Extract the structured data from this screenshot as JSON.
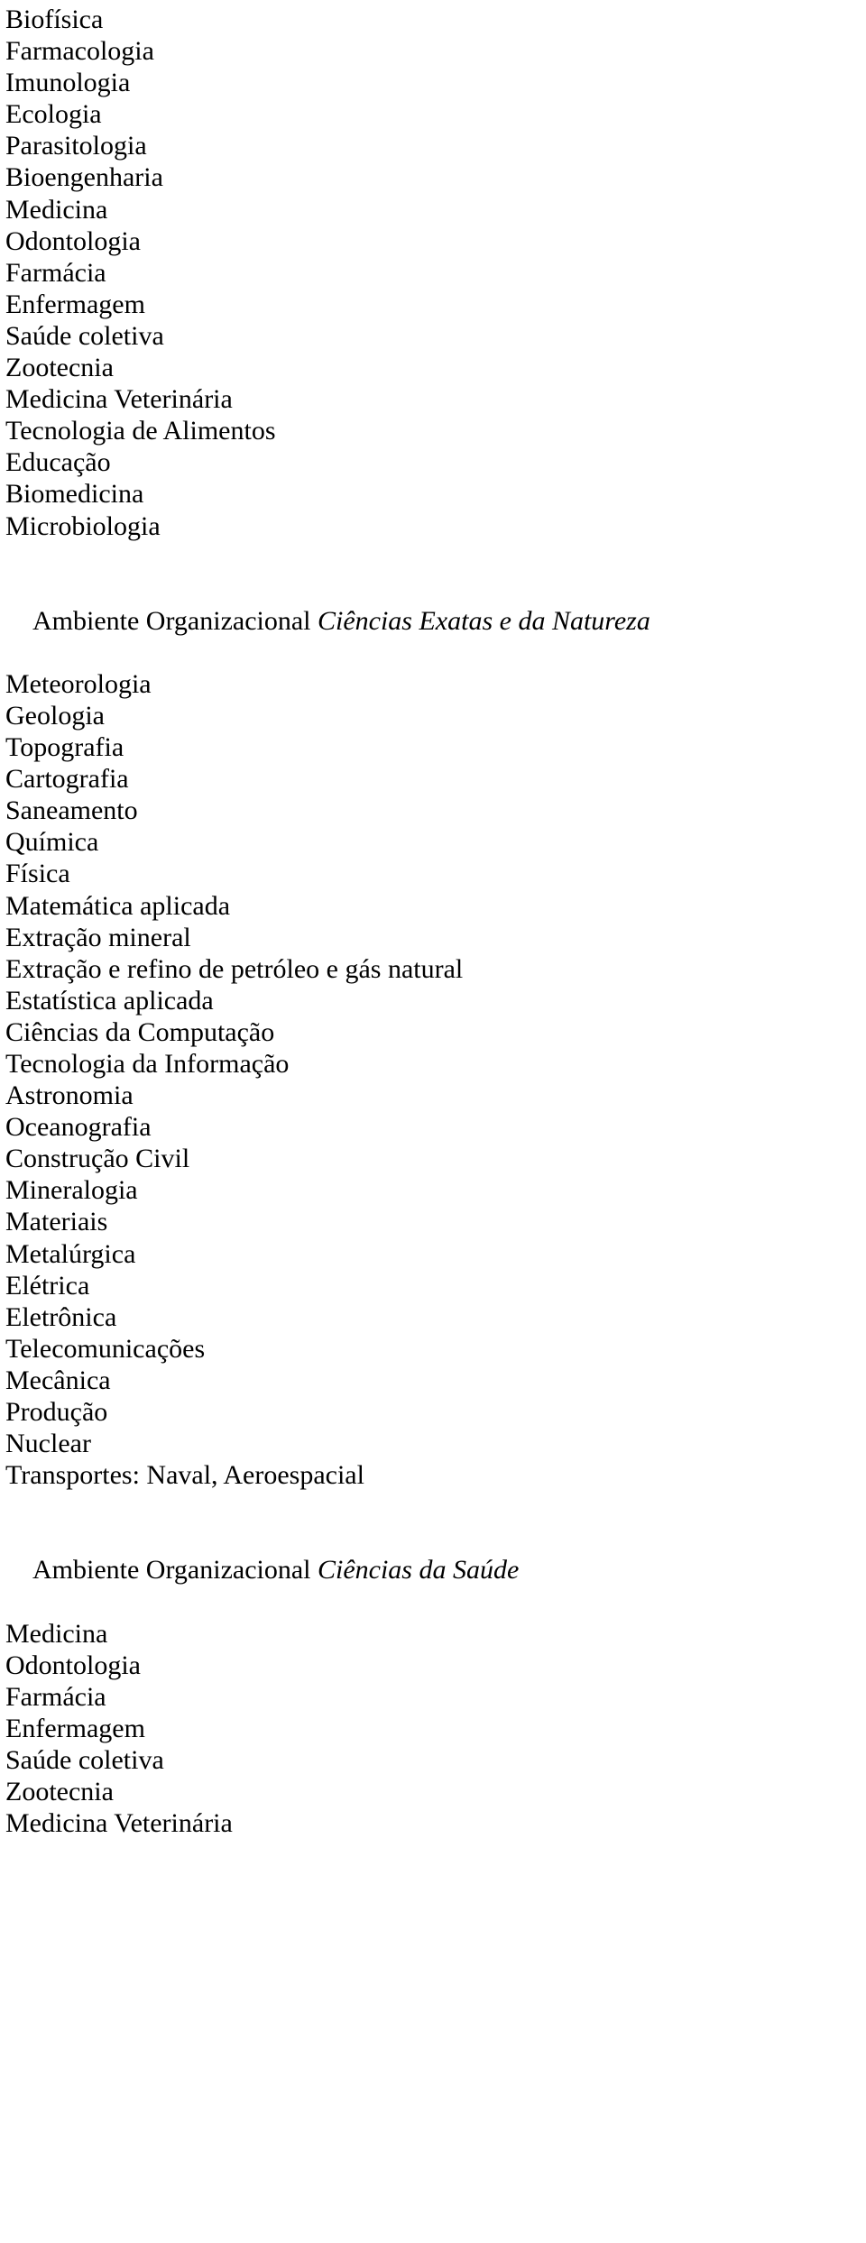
{
  "font": {
    "family": "Times New Roman",
    "size_pt": 22,
    "line_height": 1.17,
    "color": "#000000",
    "background": "#ffffff"
  },
  "sections": {
    "block1": [
      "Biofísica",
      "Farmacologia",
      "Imunologia",
      "Ecologia",
      "Parasitologia",
      "Bioengenharia",
      "Medicina",
      "Odontologia",
      "Farmácia",
      "Enfermagem",
      "Saúde coletiva",
      "Zootecnia",
      "Medicina Veterinária",
      "Tecnologia de Alimentos",
      "Educação",
      "Biomedicina",
      "Microbiologia"
    ],
    "heading2": {
      "prefix": "Ambiente Organizacional ",
      "italic": "Ciências Exatas e da Natureza"
    },
    "block2": [
      "Meteorologia",
      "Geologia",
      "Topografia",
      "Cartografia",
      "Saneamento",
      "Química",
      "Física",
      "Matemática aplicada",
      "Extração mineral",
      "Extração e refino de petróleo e gás natural",
      "Estatística aplicada",
      "Ciências da Computação",
      "Tecnologia da Informação",
      "Astronomia",
      "Oceanografia",
      "Construção Civil",
      "Mineralogia",
      "Materiais",
      "Metalúrgica",
      "Elétrica",
      "Eletrônica",
      "Telecomunicações",
      "Mecânica",
      "Produção",
      "Nuclear",
      "Transportes: Naval, Aeroespacial"
    ],
    "heading3": {
      "prefix": "Ambiente Organizacional ",
      "italic": "Ciências da Saúde"
    },
    "block3": [
      "Medicina",
      "Odontologia",
      "Farmácia",
      "Enfermagem",
      "Saúde coletiva",
      "Zootecnia",
      "Medicina Veterinária"
    ]
  }
}
